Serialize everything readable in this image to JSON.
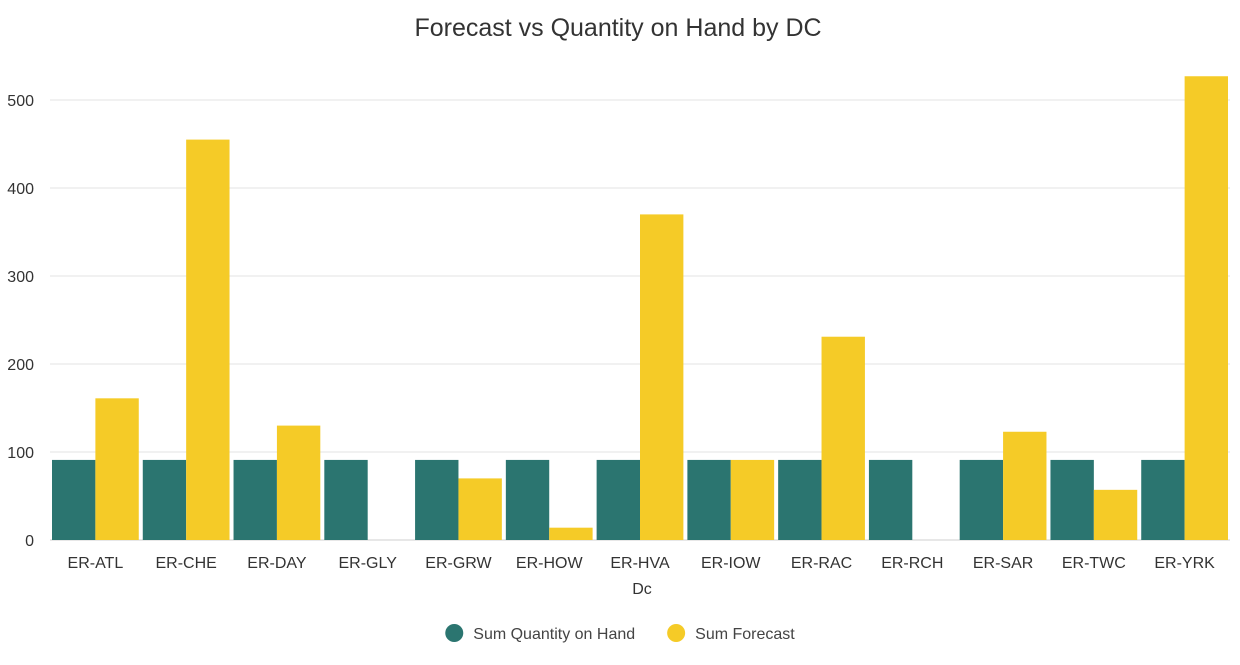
{
  "chart_data": {
    "type": "bar",
    "title": "Forecast vs Quantity on Hand by DC",
    "xlabel": "Dc",
    "ylabel": "",
    "categories": [
      "ER-ATL",
      "ER-CHE",
      "ER-DAY",
      "ER-GLY",
      "ER-GRW",
      "ER-HOW",
      "ER-HVA",
      "ER-IOW",
      "ER-RAC",
      "ER-RCH",
      "ER-SAR",
      "ER-TWC",
      "ER-YRK"
    ],
    "series": [
      {
        "name": "Sum Quantity on Hand",
        "color": "#2b7570",
        "values": [
          91,
          91,
          91,
          91,
          91,
          91,
          91,
          91,
          91,
          91,
          91,
          91,
          91
        ]
      },
      {
        "name": "Sum Forecast",
        "color": "#f5cb27",
        "values": [
          161,
          455,
          130,
          0,
          70,
          14,
          370,
          91,
          231,
          0,
          123,
          57,
          527
        ]
      }
    ],
    "ylim": [
      0,
      550
    ],
    "yticks": [
      0,
      100,
      200,
      300,
      400,
      500
    ],
    "grid": true,
    "legend_position": "bottom-center"
  }
}
